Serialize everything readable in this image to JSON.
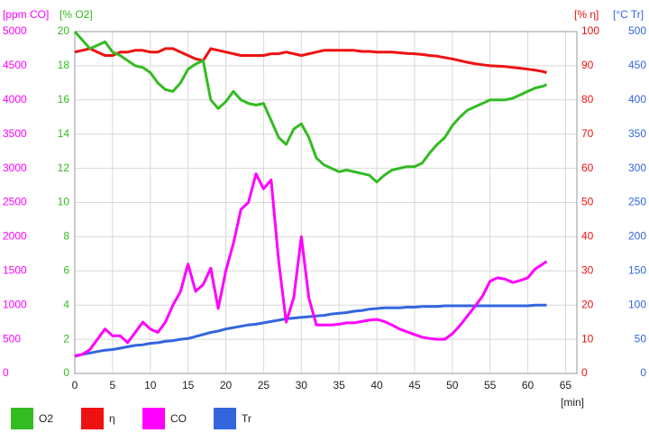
{
  "chart_data": {
    "type": "line",
    "x": [
      0,
      1,
      2,
      3,
      4,
      5,
      6,
      7,
      8,
      9,
      10,
      11,
      12,
      13,
      14,
      15,
      16,
      17,
      18,
      19,
      20,
      21,
      22,
      23,
      24,
      25,
      26,
      27,
      28,
      29,
      30,
      31,
      32,
      33,
      34,
      35,
      36,
      37,
      38,
      39,
      40,
      41,
      42,
      43,
      44,
      45,
      46,
      47,
      48,
      49,
      50,
      51,
      52,
      53,
      54,
      55,
      56,
      57,
      58,
      59,
      60,
      61,
      62,
      62.5
    ],
    "xlim": [
      0,
      66.5
    ],
    "xticks": [
      0,
      5,
      10,
      15,
      20,
      25,
      30,
      35,
      40,
      45,
      50,
      55,
      60,
      65
    ],
    "xlabel": "[min]",
    "ylabel": "[% O2]",
    "ylim": [
      0,
      20
    ],
    "yticks": [
      0,
      2,
      4,
      6,
      8,
      10,
      12,
      14,
      16,
      18,
      20
    ],
    "y2label": "[ppm CO]",
    "y2lim": [
      0,
      5000
    ],
    "y2ticks": [
      0,
      500,
      1000,
      1500,
      2000,
      2500,
      3000,
      3500,
      4000,
      4500,
      5000
    ],
    "y3label": "[% η]",
    "y3lim": [
      0,
      100
    ],
    "y3ticks": [
      0,
      10,
      20,
      30,
      40,
      50,
      60,
      70,
      80,
      90,
      100
    ],
    "y4label": "[°C Tr]",
    "y4lim": [
      0,
      500
    ],
    "y4ticks": [
      0,
      50,
      100,
      150,
      200,
      250,
      300,
      350,
      400,
      450,
      500
    ],
    "grid": true,
    "series": [
      {
        "name": "O2",
        "color": "#33bb22",
        "axis": "y",
        "values": [
          20,
          19.5,
          19,
          19.2,
          19.4,
          18.8,
          18.6,
          18.3,
          18.0,
          17.9,
          17.6,
          17.0,
          16.6,
          16.5,
          17.0,
          17.8,
          18.1,
          18.3,
          16.0,
          15.5,
          15.9,
          16.5,
          16.0,
          15.8,
          15.7,
          15.8,
          14.8,
          13.8,
          13.4,
          14.3,
          14.6,
          13.8,
          12.6,
          12.2,
          12.0,
          11.8,
          11.9,
          11.8,
          11.7,
          11.6,
          11.2,
          11.6,
          11.9,
          12.0,
          12.1,
          12.1,
          12.3,
          12.9,
          13.4,
          13.8,
          14.5,
          15.0,
          15.4,
          15.6,
          15.8,
          16.0,
          16.0,
          16.0,
          16.1,
          16.3,
          16.5,
          16.7,
          16.8,
          16.9
        ]
      },
      {
        "name": "η",
        "color": "#ee1111",
        "axis": "y3",
        "values": [
          94,
          94.5,
          95,
          94,
          93,
          93,
          94,
          94,
          94.5,
          94.5,
          94,
          94,
          95,
          95,
          94,
          93,
          92,
          91.5,
          95,
          94.5,
          94,
          93.5,
          93,
          93,
          93,
          93,
          93.5,
          93.5,
          94,
          93.5,
          93,
          93.5,
          94,
          94.5,
          94.5,
          94.5,
          94.5,
          94.5,
          94.2,
          94.2,
          94,
          94,
          94,
          93.8,
          93.6,
          93.5,
          93.3,
          93,
          92.8,
          92.4,
          92,
          91.5,
          91,
          90.6,
          90.3,
          90,
          89.9,
          89.8,
          89.5,
          89.3,
          89,
          88.7,
          88.3,
          88
        ]
      },
      {
        "name": "CO",
        "color": "#ff00ff",
        "axis": "y2",
        "values": [
          250,
          280,
          350,
          500,
          650,
          550,
          550,
          450,
          600,
          750,
          650,
          600,
          750,
          1000,
          1200,
          1600,
          1200,
          1300,
          1540,
          950,
          1500,
          1900,
          2400,
          2500,
          2920,
          2700,
          2830,
          1640,
          750,
          1110,
          2000,
          1100,
          710,
          710,
          710,
          720,
          740,
          740,
          760,
          780,
          790,
          760,
          710,
          650,
          610,
          570,
          530,
          510,
          500,
          500,
          580,
          700,
          840,
          980,
          1130,
          1350,
          1400,
          1380,
          1330,
          1360,
          1400,
          1530,
          1600,
          1640
        ]
      },
      {
        "name": "Tr",
        "color": "#3366dd",
        "axis": "y4",
        "values": [
          26,
          28,
          30,
          32,
          34,
          35,
          37,
          39,
          41,
          42,
          44,
          45,
          47,
          48,
          50,
          51,
          54,
          57,
          60,
          62,
          65,
          67,
          69,
          71,
          72,
          74,
          76,
          78,
          80,
          81,
          82,
          83,
          84,
          85,
          87,
          88,
          89,
          91,
          92,
          94,
          95,
          96,
          96,
          96,
          97,
          97,
          98,
          98,
          98,
          99,
          99,
          99,
          99,
          99,
          99,
          99,
          99,
          99,
          99,
          99,
          99,
          100,
          100,
          100
        ]
      }
    ]
  }
}
